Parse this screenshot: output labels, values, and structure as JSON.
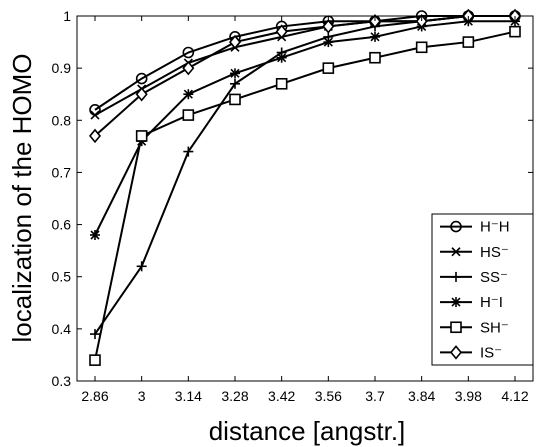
{
  "chart_data": {
    "type": "line",
    "xlabel": "distance [angstr.]",
    "ylabel": "localization of the HOMO",
    "categories": [
      "2.86",
      "3",
      "3.14",
      "3.28",
      "3.42",
      "3.56",
      "3.7",
      "3.84",
      "3.98",
      "4.12"
    ],
    "ylim": [
      0.3,
      1.0
    ],
    "yticks": [
      "0.3",
      "0.4",
      "0.5",
      "0.6",
      "0.7",
      "0.8",
      "0.9",
      "1"
    ],
    "legend_position": "lower-right",
    "series": [
      {
        "name": "H⁻H",
        "marker": "circle",
        "values": [
          0.82,
          0.88,
          0.93,
          0.96,
          0.98,
          0.99,
          0.99,
          1.0,
          1.0,
          1.0
        ]
      },
      {
        "name": "HS⁻",
        "marker": "x",
        "values": [
          0.81,
          0.86,
          0.91,
          0.94,
          0.96,
          0.98,
          0.99,
          0.99,
          1.0,
          1.0
        ]
      },
      {
        "name": "SS⁻",
        "marker": "plus",
        "values": [
          0.39,
          0.52,
          0.74,
          0.87,
          0.93,
          0.96,
          0.98,
          0.99,
          1.0,
          1.0
        ]
      },
      {
        "name": "H⁻I",
        "marker": "star",
        "values": [
          0.58,
          0.76,
          0.85,
          0.89,
          0.92,
          0.95,
          0.96,
          0.98,
          0.99,
          0.99
        ]
      },
      {
        "name": "SH⁻",
        "marker": "square",
        "values": [
          0.34,
          0.77,
          0.81,
          0.84,
          0.87,
          0.9,
          0.92,
          0.94,
          0.95,
          0.97
        ]
      },
      {
        "name": "IS⁻",
        "marker": "diamond",
        "values": [
          0.77,
          0.85,
          0.9,
          0.95,
          0.97,
          0.98,
          0.99,
          0.99,
          1.0,
          1.0
        ]
      }
    ]
  }
}
